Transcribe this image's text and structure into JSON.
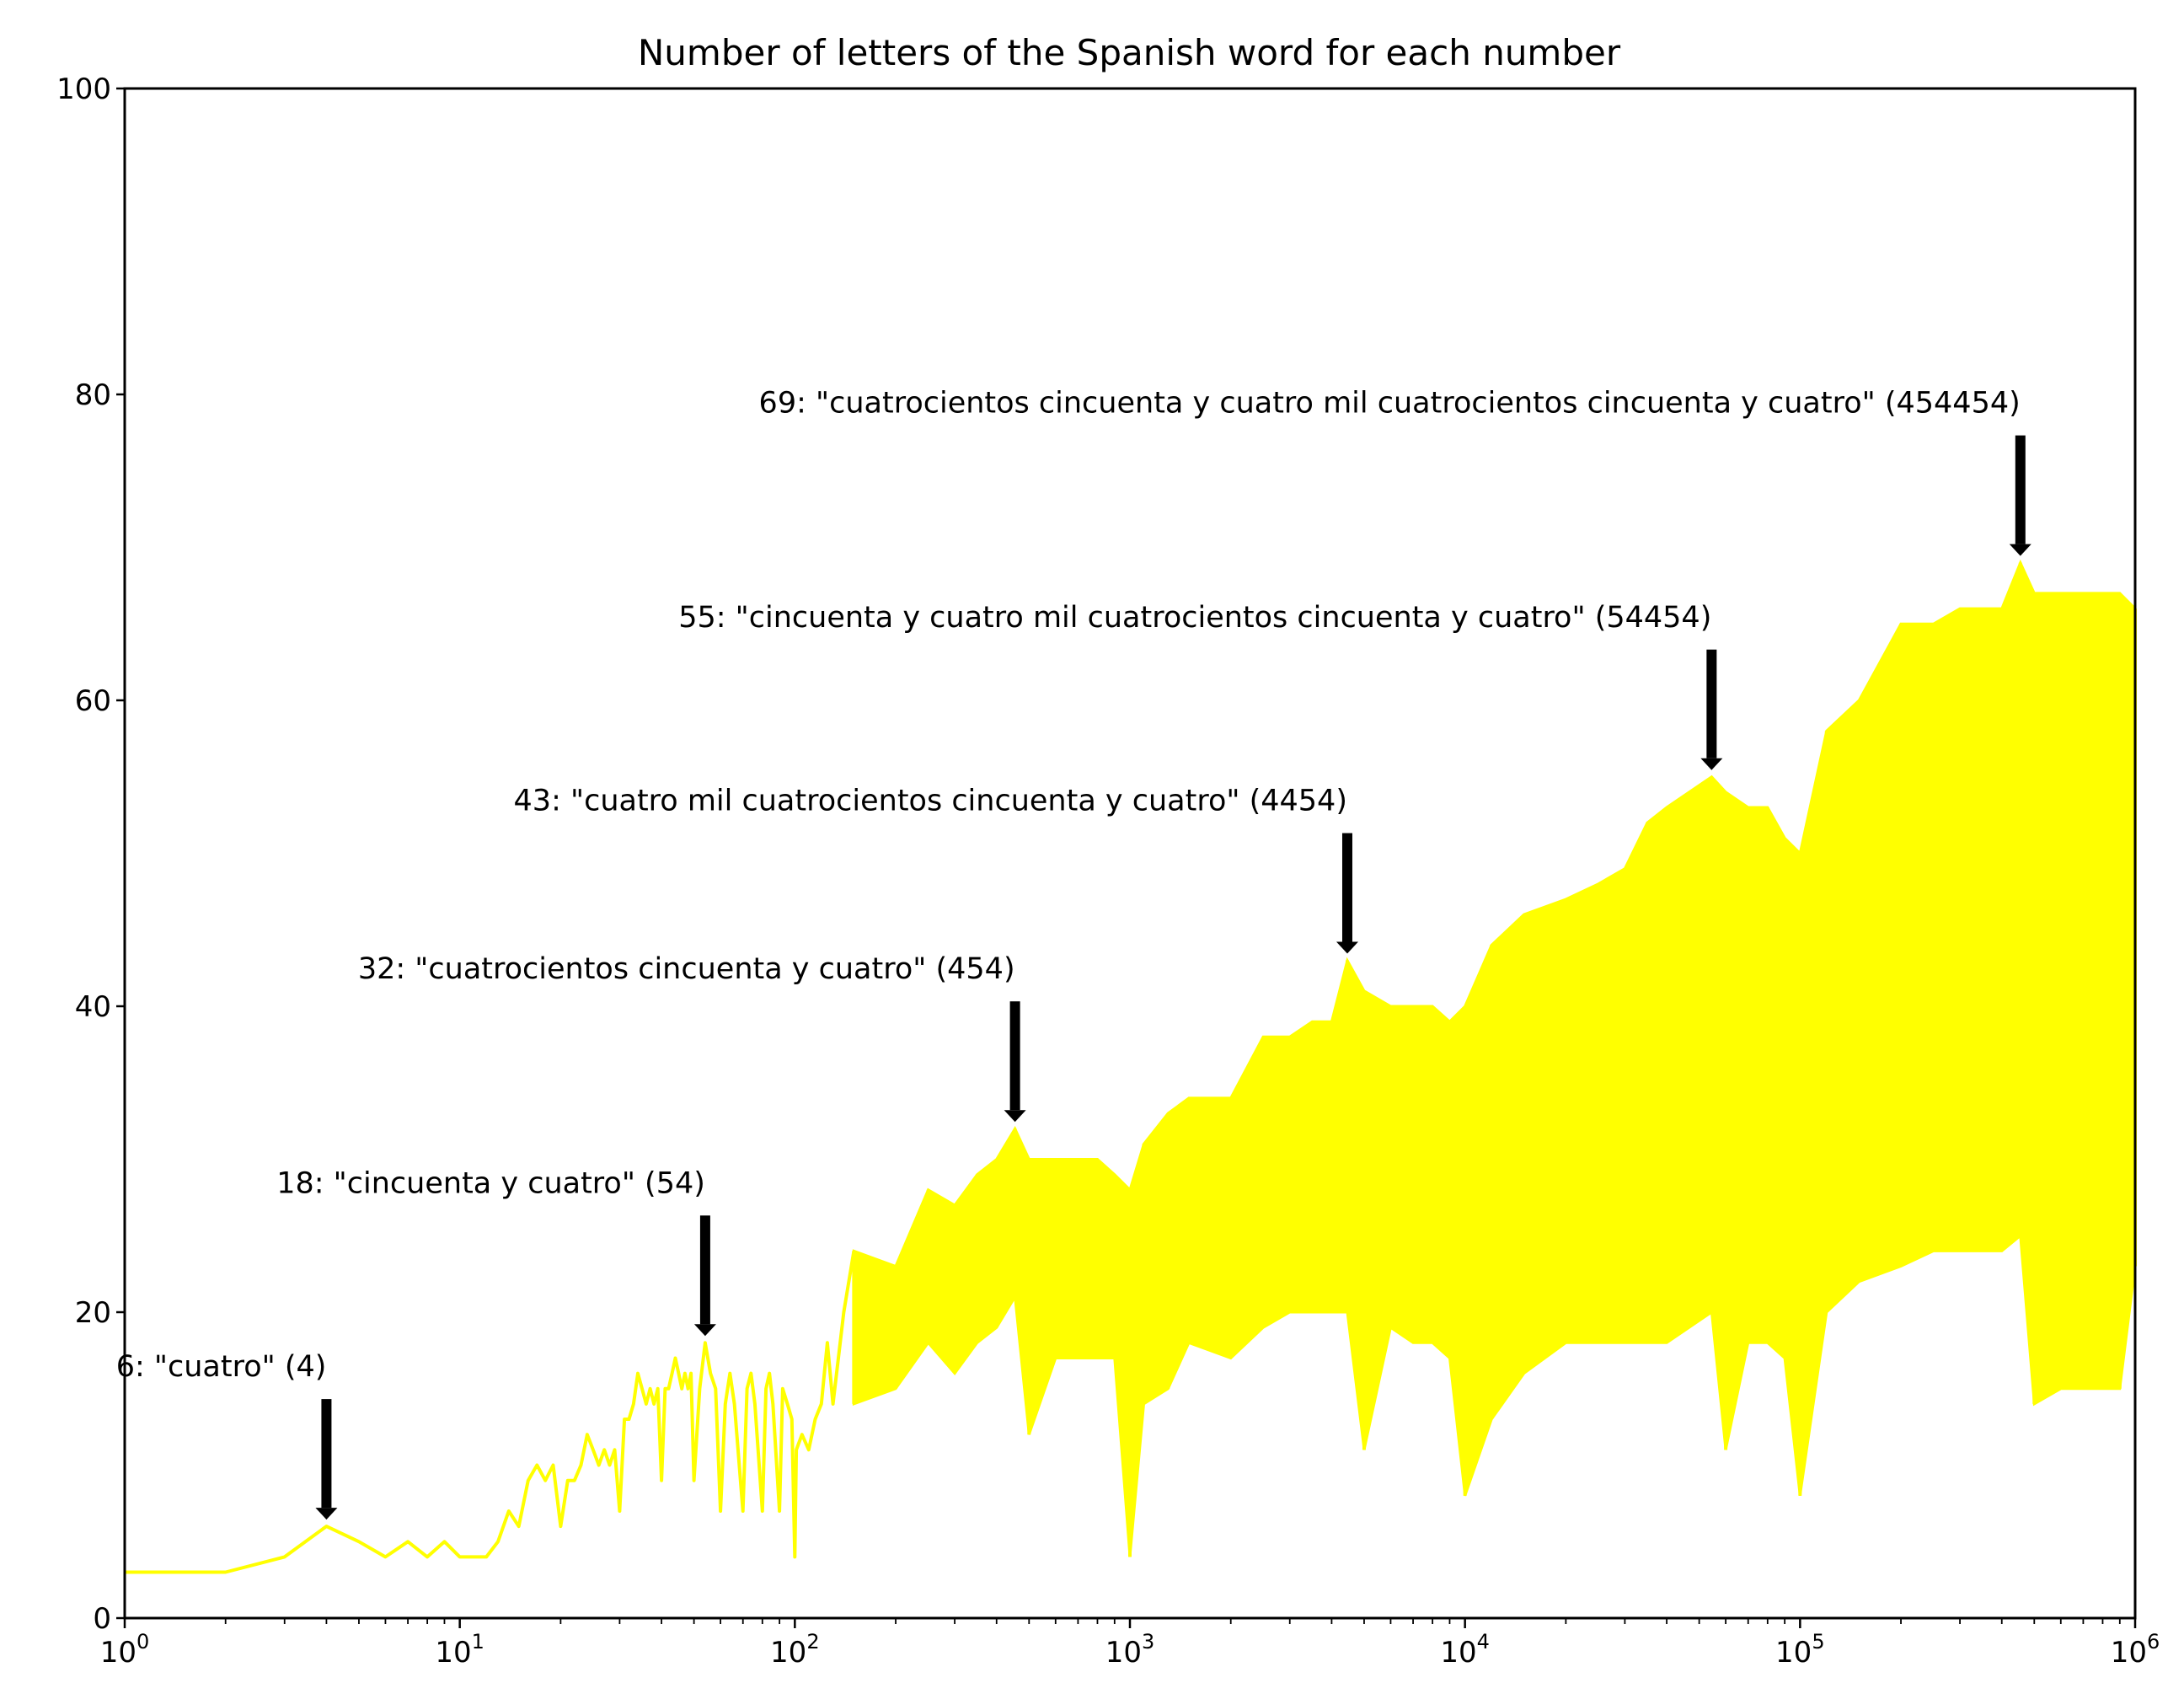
{
  "chart_data": {
    "type": "line",
    "title": "Number of letters of the Spanish word for each number",
    "xlabel": "",
    "ylabel": "",
    "x_scale": "log",
    "xlim": [
      1,
      1000000
    ],
    "ylim": [
      0,
      100
    ],
    "grid": false,
    "legend": "none",
    "series_color": "#ffff00",
    "annotation_arrow_color": "#000000",
    "y_ticks": [
      "0",
      "20",
      "40",
      "60",
      "80",
      "100"
    ],
    "x_ticks": [
      {
        "base": "10",
        "exp": "0",
        "value": 1
      },
      {
        "base": "10",
        "exp": "1",
        "value": 10
      },
      {
        "base": "10",
        "exp": "2",
        "value": 100
      },
      {
        "base": "10",
        "exp": "3",
        "value": 1000
      },
      {
        "base": "10",
        "exp": "4",
        "value": 10000
      },
      {
        "base": "10",
        "exp": "5",
        "value": 100000
      },
      {
        "base": "10",
        "exp": "6",
        "value": 1000000
      }
    ],
    "series": [
      {
        "line_points": [
          [
            1,
            3
          ],
          [
            2,
            3
          ],
          [
            3,
            4
          ],
          [
            4,
            6
          ],
          [
            5,
            5
          ],
          [
            6,
            4
          ],
          [
            7,
            5
          ],
          [
            8,
            4
          ],
          [
            9,
            5
          ],
          [
            10,
            4
          ],
          [
            11,
            4
          ],
          [
            12,
            4
          ],
          [
            13,
            5
          ],
          [
            14,
            7
          ],
          [
            15,
            6
          ],
          [
            16,
            9
          ],
          [
            17,
            10
          ],
          [
            18,
            9
          ],
          [
            19,
            10
          ],
          [
            20,
            6
          ],
          [
            21,
            9
          ],
          [
            22,
            9
          ],
          [
            23,
            10
          ],
          [
            24,
            12
          ],
          [
            25,
            11
          ],
          [
            26,
            10
          ],
          [
            27,
            11
          ],
          [
            28,
            10
          ],
          [
            29,
            11
          ],
          [
            30,
            7
          ],
          [
            31,
            13
          ],
          [
            32,
            13
          ],
          [
            33,
            14
          ],
          [
            34,
            16
          ],
          [
            35,
            15
          ],
          [
            36,
            14
          ],
          [
            37,
            15
          ],
          [
            38,
            14
          ],
          [
            39,
            15
          ],
          [
            40,
            9
          ],
          [
            41,
            15
          ],
          [
            42,
            15
          ],
          [
            43,
            16
          ],
          [
            44,
            17
          ],
          [
            45,
            16
          ],
          [
            46,
            15
          ],
          [
            47,
            16
          ],
          [
            48,
            15
          ],
          [
            49,
            16
          ],
          [
            50,
            9
          ],
          [
            52,
            15
          ],
          [
            54,
            18
          ],
          [
            56,
            16
          ],
          [
            58,
            15
          ],
          [
            60,
            7
          ],
          [
            62,
            14
          ],
          [
            64,
            16
          ],
          [
            66,
            14
          ],
          [
            70,
            7
          ],
          [
            72,
            15
          ],
          [
            74,
            16
          ],
          [
            76,
            14
          ],
          [
            80,
            7
          ],
          [
            82,
            15
          ],
          [
            84,
            16
          ],
          [
            86,
            14
          ],
          [
            90,
            7
          ],
          [
            92,
            15
          ],
          [
            95,
            14
          ],
          [
            98,
            13
          ],
          [
            100,
            4
          ],
          [
            101,
            11
          ],
          [
            105,
            12
          ],
          [
            110,
            11
          ],
          [
            115,
            13
          ],
          [
            120,
            14
          ],
          [
            125,
            18
          ],
          [
            130,
            14
          ],
          [
            140,
            20
          ],
          [
            150,
            24
          ]
        ],
        "envelope_points": [
          [
            150,
            14,
            24
          ],
          [
            200,
            15,
            23
          ],
          [
            250,
            18,
            28
          ],
          [
            300,
            16,
            27
          ],
          [
            350,
            18,
            29
          ],
          [
            400,
            19,
            30
          ],
          [
            454,
            21,
            32
          ],
          [
            500,
            12,
            30
          ],
          [
            600,
            17,
            30
          ],
          [
            700,
            17,
            30
          ],
          [
            800,
            17,
            30
          ],
          [
            900,
            17,
            29
          ],
          [
            1000,
            4,
            28
          ],
          [
            1100,
            14,
            31
          ],
          [
            1300,
            15,
            33
          ],
          [
            1500,
            18,
            34
          ],
          [
            2000,
            17,
            34
          ],
          [
            2500,
            19,
            38
          ],
          [
            3000,
            20,
            38
          ],
          [
            3500,
            20,
            39
          ],
          [
            4000,
            20,
            39
          ],
          [
            4454,
            20,
            43
          ],
          [
            5000,
            11,
            41
          ],
          [
            6000,
            19,
            40
          ],
          [
            7000,
            18,
            40
          ],
          [
            8000,
            18,
            40
          ],
          [
            9000,
            17,
            39
          ],
          [
            10000,
            8,
            40
          ],
          [
            12000,
            13,
            44
          ],
          [
            15000,
            16,
            46
          ],
          [
            20000,
            18,
            47
          ],
          [
            25000,
            18,
            48
          ],
          [
            30000,
            18,
            49
          ],
          [
            35000,
            18,
            52
          ],
          [
            40000,
            18,
            53
          ],
          [
            54454,
            20,
            55
          ],
          [
            60000,
            11,
            54
          ],
          [
            70000,
            18,
            53
          ],
          [
            80000,
            18,
            53
          ],
          [
            90000,
            17,
            51
          ],
          [
            100000,
            8,
            50
          ],
          [
            120000,
            20,
            58
          ],
          [
            150000,
            22,
            60
          ],
          [
            200000,
            23,
            65
          ],
          [
            250000,
            24,
            65
          ],
          [
            300000,
            24,
            66
          ],
          [
            400000,
            24,
            66
          ],
          [
            454454,
            25,
            69
          ],
          [
            500000,
            14,
            67
          ],
          [
            600000,
            15,
            67
          ],
          [
            700000,
            15,
            67
          ],
          [
            800000,
            15,
            67
          ],
          [
            900000,
            15,
            67
          ],
          [
            1000000,
            23,
            66
          ]
        ]
      }
    ],
    "annotations": [
      {
        "label": "6: \"cuatro\" (4)",
        "x": 4,
        "y": 6
      },
      {
        "label": "18: \"cincuenta y cuatro\" (54)",
        "x": 54,
        "y": 18
      },
      {
        "label": "32: \"cuatrocientos cincuenta y cuatro\" (454)",
        "x": 454,
        "y": 32
      },
      {
        "label": "43: \"cuatro mil cuatrocientos cincuenta y cuatro\" (4454)",
        "x": 4454,
        "y": 43
      },
      {
        "label": "55: \"cincuenta y cuatro mil cuatrocientos cincuenta y cuatro\" (54454)",
        "x": 54454,
        "y": 55
      },
      {
        "label": "69: \"cuatrocientos cincuenta y cuatro mil cuatrocientos cincuenta y cuatro\" (454454)",
        "x": 454454,
        "y": 69
      }
    ]
  }
}
